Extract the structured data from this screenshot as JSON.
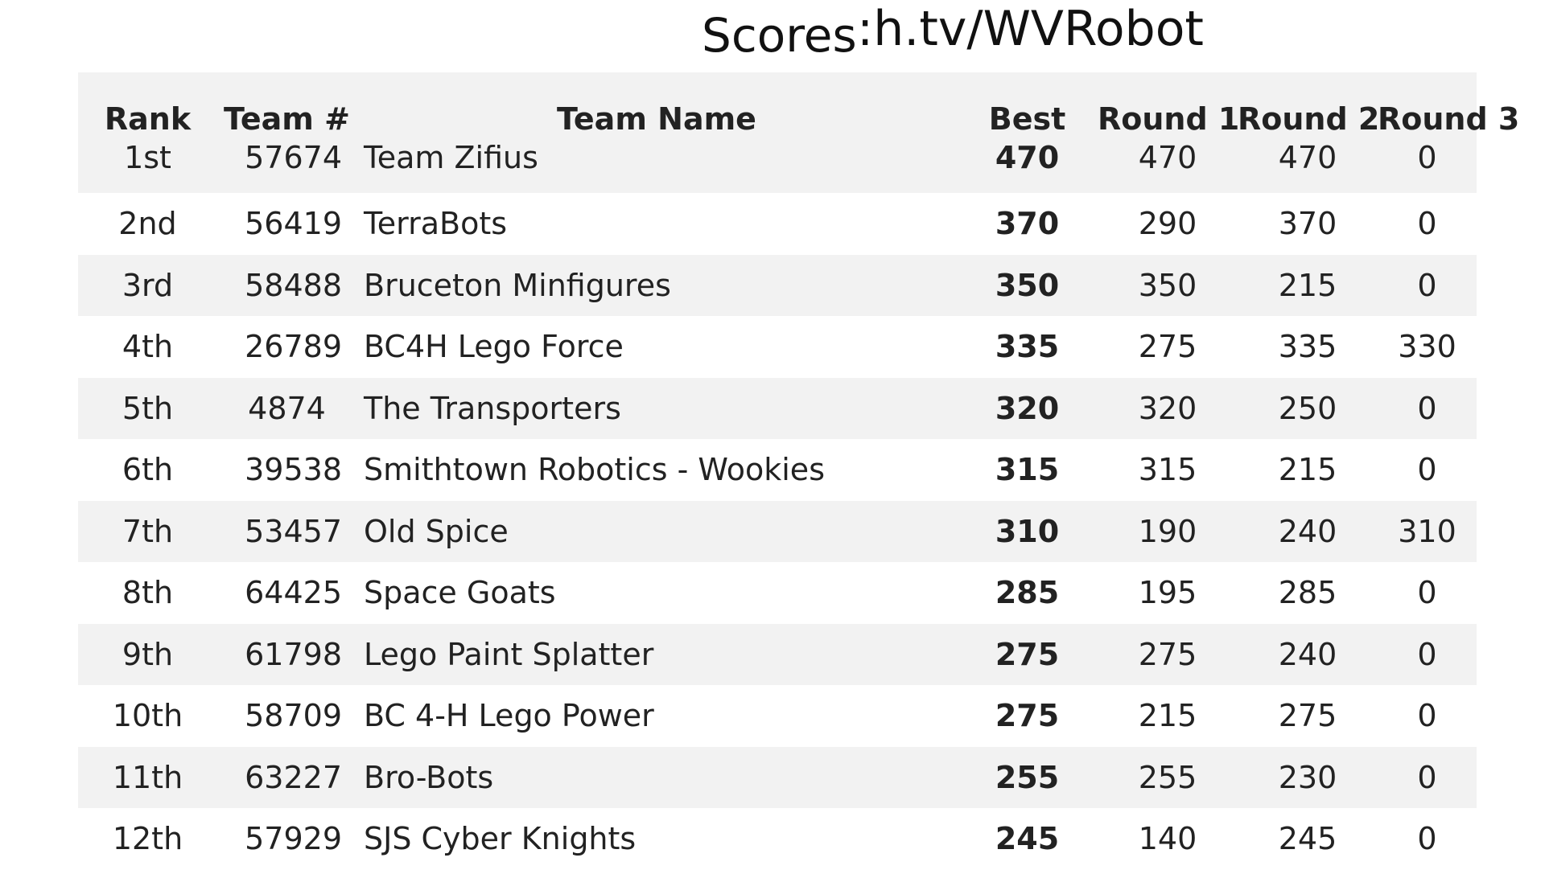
{
  "header": {
    "title_left": "Scores",
    "title_right": ":h.tv/WVRobot"
  },
  "table": {
    "columns": [
      "Rank",
      "Team #",
      "Team Name",
      "Best",
      "Round 1",
      "Round 2",
      "Round 3"
    ],
    "rows": [
      [
        "1st",
        "57674",
        "Team Zifius",
        "470",
        "470",
        "470",
        "0"
      ],
      [
        "2nd",
        "56419",
        "TerraBots",
        "370",
        "290",
        "370",
        "0"
      ],
      [
        "3rd",
        "58488",
        "Bruceton Minfigures",
        "350",
        "350",
        "215",
        "0"
      ],
      [
        "4th",
        "26789",
        "BC4H Lego Force",
        "335",
        "275",
        "335",
        "330"
      ],
      [
        "5th",
        "4874",
        "The Transporters",
        "320",
        "320",
        "250",
        "0"
      ],
      [
        "6th",
        "39538",
        "Smithtown Robotics - Wookies",
        "315",
        "315",
        "215",
        "0"
      ],
      [
        "7th",
        "53457",
        "Old Spice",
        "310",
        "190",
        "240",
        "310"
      ],
      [
        "8th",
        "64425",
        "Space Goats",
        "285",
        "195",
        "285",
        "0"
      ],
      [
        "9th",
        "61798",
        "Lego Paint Splatter",
        "275",
        "275",
        "240",
        "0"
      ],
      [
        "10th",
        "58709",
        "BC 4-H Lego Power",
        "275",
        "215",
        "275",
        "0"
      ],
      [
        "11th",
        "63227",
        "Bro-Bots",
        "255",
        "255",
        "230",
        "0"
      ],
      [
        "12th",
        "57929",
        "SJS Cyber Knights",
        "245",
        "140",
        "245",
        "0"
      ]
    ]
  },
  "colors": {
    "stripe": "#f2f2f2",
    "background": "#ffffff",
    "text": "#222222"
  }
}
